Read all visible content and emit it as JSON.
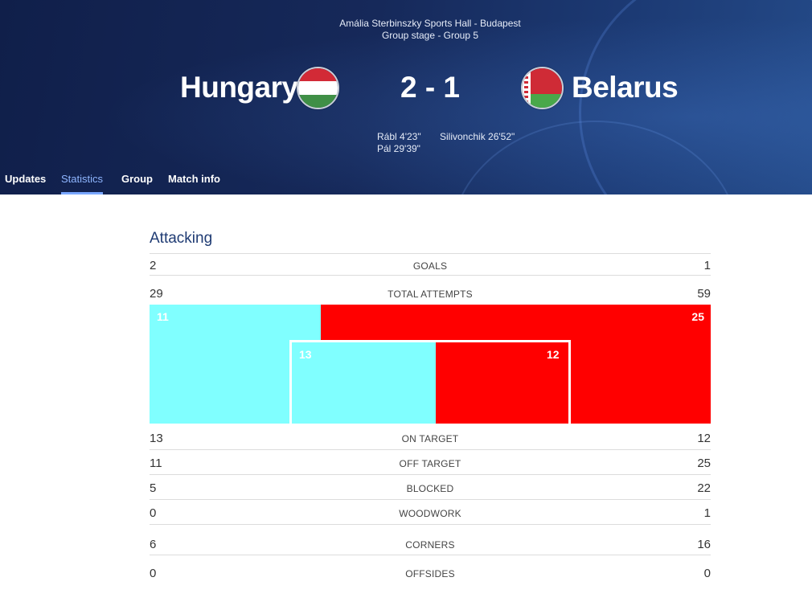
{
  "header": {
    "venue": "Amália Sterbinszky Sports Hall - Budapest",
    "stage": "Group stage - Group 5",
    "home_team": "Hungary",
    "away_team": "Belarus",
    "score": "2 - 1",
    "home_scorers": [
      "Rábl 4'23\"",
      "Pál 29'39\""
    ],
    "away_scorers": [
      "Silivonchik 26'52\""
    ],
    "tabs": [
      {
        "label": "Updates",
        "active": false
      },
      {
        "label": "Statistics",
        "active": true
      },
      {
        "label": "Group",
        "active": false
      },
      {
        "label": "Match info",
        "active": false
      }
    ]
  },
  "colors": {
    "home": "#80ffff",
    "away": "#ff0000",
    "accent_tab": "#8fb6ff",
    "header_bg": "#16295a",
    "section_title": "#1f3b73"
  },
  "attacking": {
    "title": "Attacking",
    "goals": {
      "label": "GOALS",
      "home": "2",
      "away": "1"
    },
    "total_attempts": {
      "label": "TOTAL ATTEMPTS",
      "home": "29",
      "away": "59"
    },
    "shots_viz": {
      "off_target": {
        "home": 11,
        "away": 25
      },
      "on_target": {
        "home": 13,
        "away": 12
      }
    },
    "on_target": {
      "label": "ON TARGET",
      "home": "13",
      "away": "12"
    },
    "off_target": {
      "label": "OFF TARGET",
      "home": "11",
      "away": "25"
    },
    "blocked": {
      "label": "BLOCKED",
      "home": "5",
      "away": "22"
    },
    "woodwork": {
      "label": "WOODWORK",
      "home": "0",
      "away": "1"
    },
    "corners": {
      "label": "CORNERS",
      "home": "6",
      "away": "16"
    },
    "offsides": {
      "label": "OFFSIDES",
      "home": "0",
      "away": "0"
    }
  }
}
